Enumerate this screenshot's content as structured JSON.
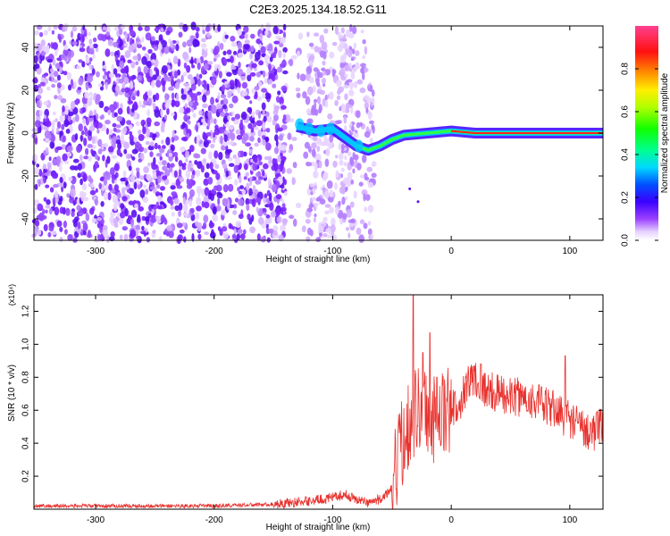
{
  "figure": {
    "title": "C2E3.2025.134.18.52.G11"
  },
  "chart_data": [
    {
      "type": "heatmap",
      "xlabel": "Height of straight line (km)",
      "ylabel": "Frequency (Hz)",
      "xlim": [
        -352,
        128
      ],
      "ylim": [
        -50,
        50
      ],
      "xticks": [
        -300,
        -200,
        -100,
        0,
        100
      ],
      "xtick_labels": [
        "-300",
        "-200",
        "-100",
        "0",
        "100"
      ],
      "yticks": [
        -40,
        -20,
        0,
        20,
        40
      ],
      "ytick_labels": [
        "-40",
        "-20",
        "0",
        "20",
        "40"
      ],
      "colorbar": {
        "label": "Normalized spectral amplitude",
        "range": [
          0,
          1
        ],
        "ticks": [
          0.0,
          0.2,
          0.4,
          0.6,
          0.8
        ],
        "tick_labels": [
          "0.0",
          "0.2",
          "0.4",
          "0.6",
          "0.8"
        ],
        "colormap": "rainbow (white-purple-blue-cyan-green-yellow-orange-red-magenta)"
      },
      "noise_region": {
        "x_range": [
          -352,
          -65
        ],
        "freq_range": [
          -50,
          50
        ],
        "amplitude": "low (purple)"
      },
      "signal_trace": {
        "description": "strong narrow band converging to ~0 Hz",
        "points": [
          {
            "x": -130,
            "y": 3
          },
          {
            "x": -115,
            "y": 1
          },
          {
            "x": -100,
            "y": 2
          },
          {
            "x": -80,
            "y": -6
          },
          {
            "x": -70,
            "y": -8
          },
          {
            "x": -60,
            "y": -6
          },
          {
            "x": -50,
            "y": -3
          },
          {
            "x": -40,
            "y": -1
          },
          {
            "x": -20,
            "y": 0
          },
          {
            "x": 0,
            "y": 1
          },
          {
            "x": 20,
            "y": 0
          },
          {
            "x": 60,
            "y": 0
          },
          {
            "x": 100,
            "y": 0
          },
          {
            "x": 128,
            "y": 0
          }
        ]
      }
    },
    {
      "type": "line",
      "xlabel": "Height of straight line (km)",
      "ylabel": "SNR (10 * v/v)",
      "y_multiplier": "(x10⁴)",
      "xlim": [
        -352,
        128
      ],
      "ylim": [
        0,
        1.3
      ],
      "xticks": [
        -300,
        -200,
        -100,
        0,
        100
      ],
      "xtick_labels": [
        "-300",
        "-200",
        "-100",
        "0",
        "100"
      ],
      "yticks": [
        0.2,
        0.4,
        0.6,
        0.8,
        1.0,
        1.2
      ],
      "ytick_labels": [
        "0.2",
        "0.4",
        "0.6",
        "0.8",
        "1.0",
        "1.2"
      ],
      "series": [
        {
          "color": "#e8322e",
          "x": [
            -352,
            -300,
            -250,
            -200,
            -150,
            -120,
            -100,
            -90,
            -80,
            -70,
            -60,
            -50,
            -45,
            -40,
            -35,
            -30,
            -25,
            -20,
            -15,
            -10,
            -5,
            0,
            5,
            10,
            15,
            20,
            25,
            30,
            40,
            50,
            60,
            70,
            80,
            90,
            95,
            100,
            105,
            110,
            115,
            120,
            128
          ],
          "values": [
            0.02,
            0.02,
            0.02,
            0.02,
            0.03,
            0.05,
            0.07,
            0.09,
            0.06,
            0.04,
            0.06,
            0.12,
            0.3,
            0.45,
            0.55,
            0.6,
            0.62,
            0.6,
            0.55,
            0.55,
            0.58,
            0.6,
            0.62,
            0.7,
            0.78,
            0.8,
            0.76,
            0.72,
            0.7,
            0.68,
            0.68,
            0.66,
            0.62,
            0.6,
            0.56,
            0.55,
            0.52,
            0.5,
            0.48,
            0.47,
            0.5
          ]
        }
      ],
      "spikes": [
        {
          "x": -32,
          "y": 1.3
        },
        {
          "x": -24,
          "y": 0.95
        },
        {
          "x": -18,
          "y": 1.07
        },
        {
          "x": -12,
          "y": 0.8
        },
        {
          "x": 25,
          "y": 0.88
        },
        {
          "x": 96,
          "y": 0.93
        }
      ]
    }
  ]
}
